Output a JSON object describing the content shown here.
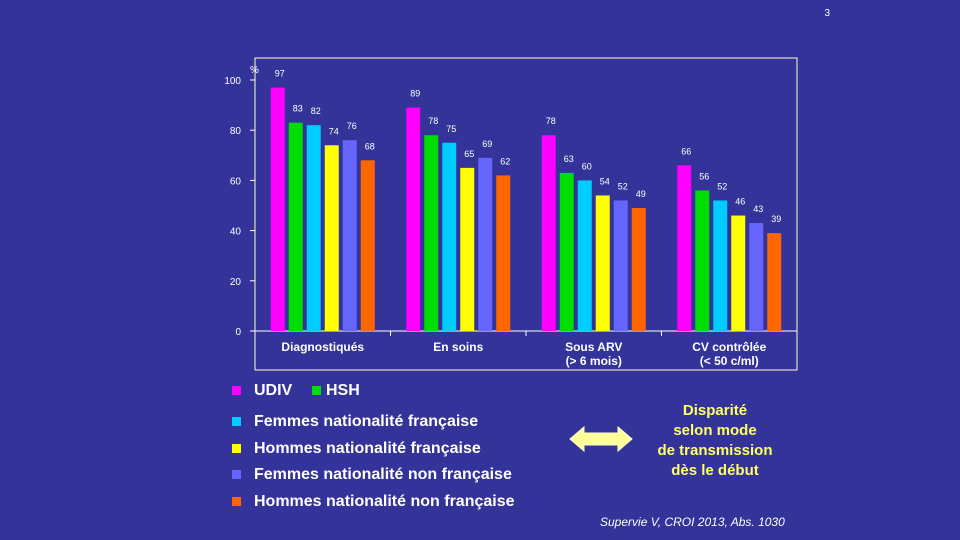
{
  "page_number": "3",
  "chart_data": {
    "type": "bar",
    "ylabel": "%",
    "ylim": [
      0,
      100
    ],
    "yticks": [
      0,
      20,
      40,
      60,
      80,
      100
    ],
    "categories": [
      [
        "Diagnostiqués"
      ],
      [
        "En soins"
      ],
      [
        "Sous ARV",
        "(> 6 mois)"
      ],
      [
        "CV contrôlée",
        "(< 50 c/ml)"
      ]
    ],
    "series": [
      {
        "name": "UDIV",
        "color": "#ff00ff",
        "values": [
          97,
          89,
          78,
          66
        ]
      },
      {
        "name": "HSH",
        "color": "#00dd00",
        "values": [
          83,
          78,
          63,
          56
        ]
      },
      {
        "name": "Femmes nationalité française",
        "color": "#00ccff",
        "values": [
          82,
          75,
          60,
          52
        ]
      },
      {
        "name": "Hommes nationalité française",
        "color": "#ffff00",
        "values": [
          74,
          65,
          54,
          46
        ]
      },
      {
        "name": "Femmes nationalité non française",
        "color": "#6666ff",
        "values": [
          76,
          69,
          52,
          43
        ]
      },
      {
        "name": "Hommes nationalité non française",
        "color": "#ff6600",
        "values": [
          68,
          62,
          49,
          39
        ]
      }
    ]
  },
  "callout": {
    "lines": [
      "Disparité",
      "selon mode",
      "de transmission",
      "dès le début"
    ],
    "color": "#ffff66"
  },
  "citation": "Supervie V, CROI 2013, Abs. 1030"
}
